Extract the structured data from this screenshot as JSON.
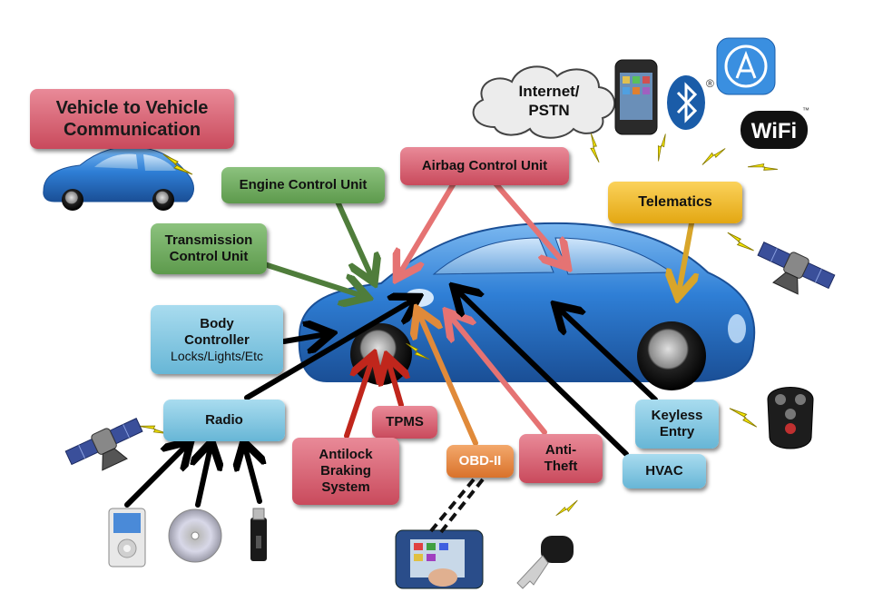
{
  "v2v": {
    "line1": "Vehicle to Vehicle",
    "line2": "Communication"
  },
  "ecu": {
    "label": "Engine Control Unit"
  },
  "tcu": {
    "line1": "Transmission",
    "line2": "Control Unit"
  },
  "body": {
    "line1": "Body",
    "line2": "Controller",
    "line3": "Locks/Lights/Etc"
  },
  "airbag": {
    "label": "Airbag Control Unit"
  },
  "cloud": {
    "line1": "Internet/",
    "line2": "PSTN"
  },
  "telematics": {
    "label": "Telematics"
  },
  "radio": {
    "label": "Radio"
  },
  "tpms": {
    "label": "TPMS"
  },
  "abs": {
    "line1": "Antilock",
    "line2": "Braking",
    "line3": "System"
  },
  "obd": {
    "label": "OBD-II"
  },
  "antitheft": {
    "line1": "Anti-",
    "line2": "Theft"
  },
  "keyless": {
    "line1": "Keyless",
    "line2": "Entry"
  },
  "hvac": {
    "label": "HVAC"
  },
  "logos": {
    "wifi_text": "WiFi",
    "registered": "®",
    "trademark": "™"
  },
  "colors": {
    "red_box": "#d65f70",
    "green_box": "#6aa85a",
    "blue_box": "#7ec4e0",
    "orange_box": "#e47f35",
    "gold_box": "#eeb628",
    "car_blue": "#2f7fd6",
    "arrow_black": "#000000",
    "lightning": "#f5e600"
  }
}
